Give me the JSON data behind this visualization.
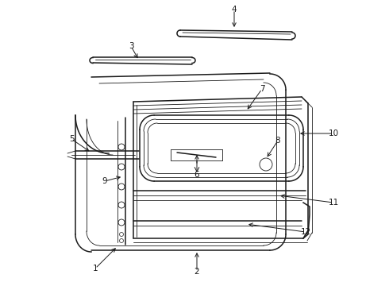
{
  "bg_color": "#ffffff",
  "line_color": "#1a1a1a",
  "figsize": [
    4.9,
    3.6
  ],
  "dpi": 100,
  "lw_main": 1.1,
  "lw_thin": 0.6,
  "lw_med": 0.85,
  "label_fs": 7.5
}
